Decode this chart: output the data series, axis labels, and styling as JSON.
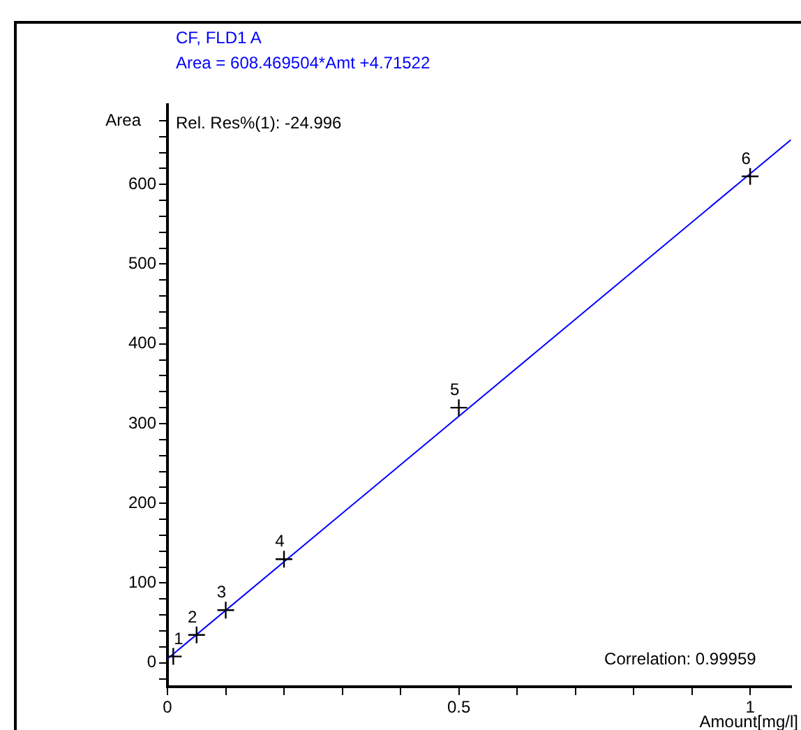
{
  "chart_data": {
    "type": "scatter",
    "title": "CF, FLD1 A",
    "subtitle": "Area = 608.469504*Amt +4.71522",
    "xlabel": "Amount[mg/l]",
    "ylabel": "Area",
    "xlim": [
      0,
      1.07
    ],
    "ylim": [
      -30,
      700
    ],
    "xticks": [
      0,
      {
        "value": 0.1,
        "label": null
      },
      {
        "value": 0.2,
        "label": null
      },
      {
        "value": 0.3,
        "label": null
      },
      {
        "value": 0.4,
        "label": null
      },
      0.5,
      {
        "value": 0.6,
        "label": null
      },
      {
        "value": 0.7,
        "label": null
      },
      {
        "value": 0.8,
        "label": null
      },
      {
        "value": 0.9,
        "label": null
      },
      1
    ],
    "yticks": [
      {
        "value": -20,
        "label": null
      },
      0,
      {
        "value": 20,
        "label": null
      },
      {
        "value": 40,
        "label": null
      },
      {
        "value": 60,
        "label": null
      },
      {
        "value": 80,
        "label": null
      },
      100,
      {
        "value": 120,
        "label": null
      },
      {
        "value": 140,
        "label": null
      },
      {
        "value": 160,
        "label": null
      },
      {
        "value": 180,
        "label": null
      },
      200,
      {
        "value": 220,
        "label": null
      },
      {
        "value": 240,
        "label": null
      },
      {
        "value": 260,
        "label": null
      },
      {
        "value": 280,
        "label": null
      },
      300,
      {
        "value": 320,
        "label": null
      },
      {
        "value": 340,
        "label": null
      },
      {
        "value": 360,
        "label": null
      },
      {
        "value": 380,
        "label": null
      },
      400,
      {
        "value": 420,
        "label": null
      },
      {
        "value": 440,
        "label": null
      },
      {
        "value": 460,
        "label": null
      },
      {
        "value": 480,
        "label": null
      },
      500,
      {
        "value": 520,
        "label": null
      },
      {
        "value": 540,
        "label": null
      },
      {
        "value": 560,
        "label": null
      },
      {
        "value": 580,
        "label": null
      },
      600,
      {
        "value": 620,
        "label": null
      },
      {
        "value": 640,
        "label": null
      },
      {
        "value": 660,
        "label": null
      },
      {
        "value": 680,
        "label": null
      }
    ],
    "grid": false,
    "legend": false,
    "series": [
      {
        "color": "#000000",
        "marker": "cross",
        "x": [
          0.01,
          0.05,
          0.1,
          0.2,
          0.5,
          1.0
        ],
        "values": [
          8,
          35,
          66,
          130,
          320,
          610
        ]
      },
      {
        "type": "line",
        "color": "#0000ff",
        "marker": "none",
        "line_style": "solid",
        "x": [
          0,
          1.07
        ],
        "values": [
          5,
          656
        ]
      }
    ],
    "annotations": [
      "Rel. Res%(1): -24.996",
      "Correlation: 0.99959",
      {
        "text": "1",
        "x": 0.01,
        "y": 8
      },
      {
        "text": "2",
        "x": 0.05,
        "y": 35
      },
      {
        "text": "3",
        "x": 0.1,
        "y": 66
      },
      {
        "text": "4",
        "x": 0.2,
        "y": 130
      },
      {
        "text": "5",
        "x": 0.5,
        "y": 320
      },
      {
        "text": "6",
        "x": 1.0,
        "y": 610
      }
    ]
  }
}
